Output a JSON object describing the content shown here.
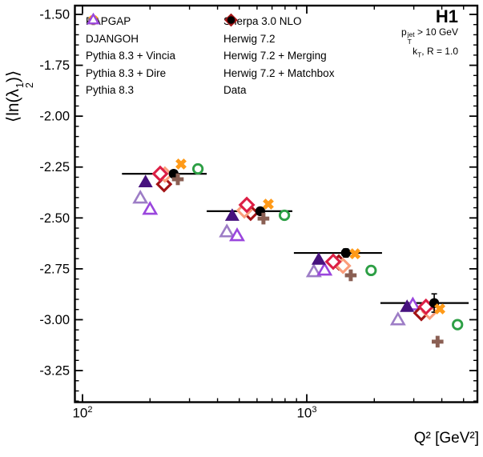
{
  "figure": {
    "experiment": "H1",
    "cut_pt": {
      "base": "p",
      "sup": "jet",
      "sub": "T",
      "rest": "> 10 GeV"
    },
    "cut_kt": {
      "base": "k",
      "sub": "T",
      "rest": ", R = 1.0"
    }
  },
  "axes": {
    "xlabel": "Q² [GeV²]",
    "ylabel_parts": {
      "pre": "⟨ln(λ",
      "sup": "1",
      "sub": "2",
      "post": ")⟩"
    },
    "x_scale": "log",
    "x_range": [
      92,
      5800
    ],
    "y_range": [
      -3.41,
      -1.455
    ],
    "y_major_ticks": [
      "-1.50",
      "-1.75",
      "-2.00",
      "-2.25",
      "-2.50",
      "-2.75",
      "-3.00",
      "-3.25"
    ],
    "x_major_ticks": [
      {
        "base": "10",
        "exp": "2",
        "value": 100
      },
      {
        "base": "10",
        "exp": "3",
        "value": 1000
      }
    ],
    "grid": false
  },
  "legend": {
    "column1": [
      "RAPGAP",
      "DJANGOH",
      "Pythia 8.3 + Vincia",
      "Pythia 8.3 + Dire",
      "Pythia 8.3"
    ],
    "column2": [
      "Sherpa 3.0 NLO",
      "Herwig 7.2",
      "Herwig 7.2 + Merging",
      "Herwig 7.2 + Matchbox",
      "Data"
    ]
  },
  "chart_data": {
    "type": "scatter",
    "x_axis": "Q² [GeV²]",
    "y_axis": "⟨ln(λ²₁)⟩ mean value",
    "series": [
      {
        "name": "RAPGAP",
        "marker": "xcross",
        "color": "#ff9a18",
        "points": [
          [
            275,
            -2.235
          ],
          [
            674,
            -2.432
          ],
          [
            1640,
            -2.676
          ],
          [
            3920,
            -2.947
          ]
        ]
      },
      {
        "name": "DJANGOH",
        "marker": "plus",
        "color": "#8a5f53",
        "points": [
          [
            266,
            -2.31
          ],
          [
            641,
            -2.503
          ],
          [
            1570,
            -2.782
          ],
          [
            3830,
            -3.108
          ]
        ]
      },
      {
        "name": "Pythia 8.3 + Vincia",
        "marker": "triangle-open",
        "color": "#9d7dc6",
        "points": [
          [
            181,
            -2.404
          ],
          [
            440,
            -2.57
          ],
          [
            1075,
            -2.766
          ],
          [
            2550,
            -3.002
          ]
        ]
      },
      {
        "name": "Pythia 8.3 + Dire",
        "marker": "triangle-filled",
        "color": "#47127e",
        "points": [
          [
            191,
            -2.326
          ],
          [
            465,
            -2.491
          ],
          [
            1130,
            -2.707
          ],
          [
            2800,
            -2.939
          ]
        ]
      },
      {
        "name": "Pythia 8.3",
        "marker": "triangle-open",
        "color": "#9a46dd",
        "points": [
          [
            200,
            -2.459
          ],
          [
            489,
            -2.589
          ],
          [
            1200,
            -2.758
          ],
          [
            2970,
            -2.929
          ]
        ]
      },
      {
        "name": "Sherpa 3.0 NLO",
        "marker": "circle-open",
        "color": "#2d9f45",
        "points": [
          [
            327,
            -2.259
          ],
          [
            795,
            -2.487
          ],
          [
            1935,
            -2.758
          ],
          [
            4700,
            -3.024
          ]
        ]
      },
      {
        "name": "Herwig 7.2",
        "marker": "diamond-open",
        "color": "#dc1f45",
        "points": [
          [
            222,
            -2.283
          ],
          [
            540,
            -2.436
          ],
          [
            1312,
            -2.715
          ],
          [
            3400,
            -2.937
          ]
        ]
      },
      {
        "name": "Herwig 7.2 + Merging",
        "marker": "diamond-open",
        "color": "#fb9e7c",
        "points": [
          [
            233,
            -2.287
          ],
          [
            527,
            -2.463
          ],
          [
            1450,
            -2.735
          ],
          [
            3530,
            -2.961
          ]
        ]
      },
      {
        "name": "Herwig 7.2 + Matchbox",
        "marker": "diamond-open",
        "color": "#a31416",
        "points": [
          [
            231,
            -2.334
          ],
          [
            562,
            -2.475
          ],
          [
            1390,
            -2.719
          ],
          [
            3240,
            -2.967
          ]
        ]
      },
      {
        "name": "Data",
        "marker": "circle-filled",
        "color": "#000000",
        "points": [
          [
            255,
            -2.283
          ],
          [
            620,
            -2.467
          ],
          [
            1494,
            -2.672
          ],
          [
            3700,
            -2.918
          ]
        ],
        "errors": [
          0.012,
          0.012,
          0.02,
          0.045
        ],
        "bins": [
          [
            150,
            358
          ],
          [
            358,
            862
          ],
          [
            876,
            2165
          ],
          [
            2130,
            5270
          ]
        ]
      }
    ]
  }
}
